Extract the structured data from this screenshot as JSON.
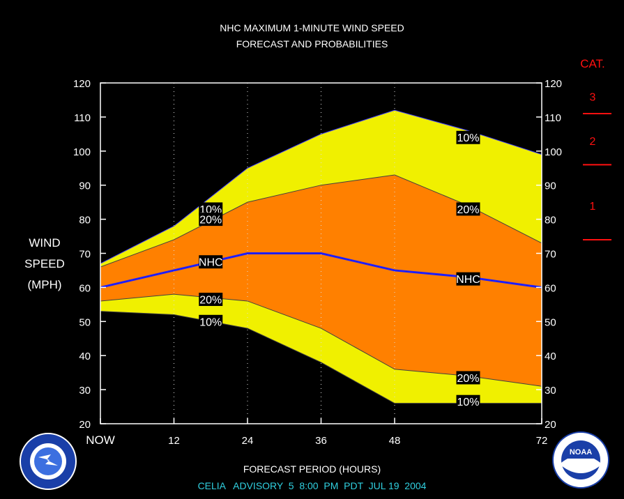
{
  "chart_data": {
    "type": "area",
    "title": "NHC MAXIMUM 1-MINUTE WIND SPEED",
    "subtitle": "FORECAST AND PROBABILITIES",
    "ylabel": [
      "WIND",
      "SPEED",
      "(MPH)"
    ],
    "xlabel": "FORECAST PERIOD (HOURS)",
    "advisory": "CELIA   ADVISORY  5  8:00  PM  PDT  JUL 19  2004",
    "ylim": [
      20,
      120
    ],
    "xlim": [
      0,
      72
    ],
    "yticks": [
      20,
      30,
      40,
      50,
      60,
      70,
      80,
      90,
      100,
      110,
      120
    ],
    "xticks": [
      {
        "x": 0,
        "label": "NOW"
      },
      {
        "x": 12,
        "label": "12"
      },
      {
        "x": 24,
        "label": "24"
      },
      {
        "x": 36,
        "label": "36"
      },
      {
        "x": 48,
        "label": "48"
      },
      {
        "x": 72,
        "label": "72"
      }
    ],
    "grid": {
      "vertical_dotted_at": [
        12,
        24,
        36,
        48
      ]
    },
    "series": [
      {
        "name": "10%",
        "role": "upper",
        "x": [
          0,
          12,
          24,
          36,
          48,
          60,
          72
        ],
        "y": [
          67,
          78,
          95,
          105,
          112,
          106,
          99
        ]
      },
      {
        "name": "20%",
        "role": "upper",
        "x": [
          0,
          12,
          24,
          36,
          48,
          60,
          72
        ],
        "y": [
          66,
          74,
          85,
          90,
          93,
          84,
          73
        ]
      },
      {
        "name": "NHC",
        "role": "forecast",
        "x": [
          0,
          12,
          24,
          36,
          48,
          60,
          72
        ],
        "y": [
          60,
          65,
          70,
          70,
          65,
          63,
          60
        ]
      },
      {
        "name": "20%",
        "role": "lower",
        "x": [
          0,
          12,
          24,
          36,
          48,
          60,
          72
        ],
        "y": [
          56,
          58,
          56,
          48,
          36,
          34,
          31
        ]
      },
      {
        "name": "10%",
        "role": "lower",
        "x": [
          0,
          12,
          24,
          36,
          48,
          60,
          72
        ],
        "y": [
          53,
          52,
          48,
          38,
          26,
          26,
          26
        ]
      }
    ],
    "labels": [
      {
        "text": "10%",
        "x": 18,
        "y": 83
      },
      {
        "text": "20%",
        "x": 18,
        "y": 80
      },
      {
        "text": "NHC",
        "x": 18,
        "y": 67.5
      },
      {
        "text": "20%",
        "x": 18,
        "y": 56.5
      },
      {
        "text": "10%",
        "x": 18,
        "y": 50
      },
      {
        "text": "10%",
        "x": 60,
        "y": 104
      },
      {
        "text": "20%",
        "x": 60,
        "y": 83
      },
      {
        "text": "NHC",
        "x": 60,
        "y": 62.5
      },
      {
        "text": "20%",
        "x": 60,
        "y": 33.5
      },
      {
        "text": "10%",
        "x": 60,
        "y": 26.5
      }
    ],
    "categories_scale": {
      "title": "CAT.",
      "levels": [
        {
          "label": "3",
          "y": 116
        },
        {
          "label": "2",
          "y": 103
        },
        {
          "label": "1",
          "y": 84
        }
      ],
      "thresholds": [
        111,
        96,
        74
      ]
    },
    "colors": {
      "band10": "#f0f000",
      "band20": "#ff8000",
      "nhc_line": "#1e1eff",
      "category": "#ff1010",
      "advisory": "#30d0e0",
      "axis": "#ffffff"
    }
  },
  "logos": {
    "left": "nws-logo",
    "right": "noaa-logo",
    "noaa_text": "NOAA"
  }
}
